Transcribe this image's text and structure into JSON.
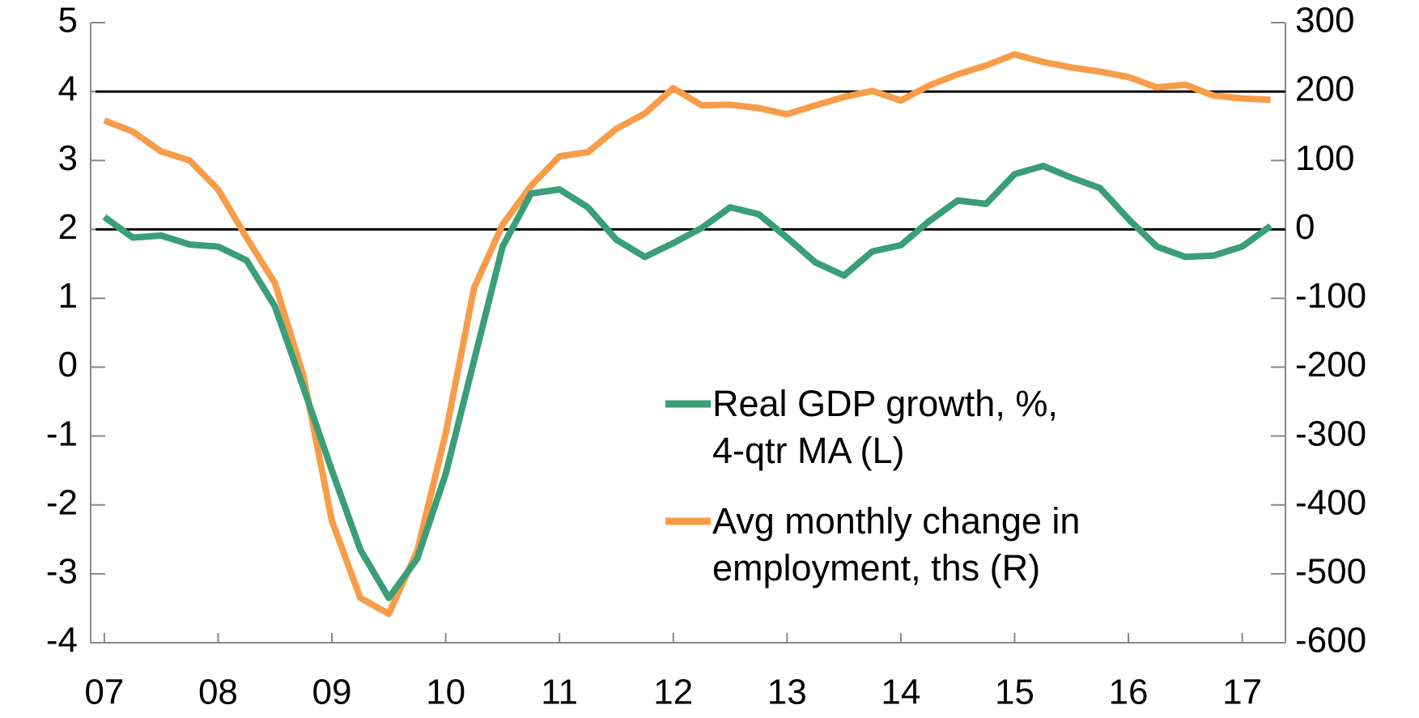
{
  "chart_data": {
    "type": "line",
    "x": [
      2007,
      2007.25,
      2007.5,
      2007.75,
      2008,
      2008.25,
      2008.5,
      2008.75,
      2009,
      2009.25,
      2009.5,
      2009.75,
      2010,
      2010.25,
      2010.5,
      2010.75,
      2011,
      2011.25,
      2011.5,
      2011.75,
      2012,
      2012.25,
      2012.5,
      2012.75,
      2013,
      2013.25,
      2013.5,
      2013.75,
      2014,
      2014.25,
      2014.5,
      2014.75,
      2015,
      2015.25,
      2015.5,
      2015.75,
      2016,
      2016.25,
      2016.5,
      2016.75,
      2017,
      2017.25
    ],
    "series": [
      {
        "name": "Real GDP growth, %,\n4-qtr MA (L)",
        "color": "#3a9e78",
        "values": [
          2.18,
          1.88,
          1.91,
          1.78,
          1.75,
          1.55,
          0.88,
          -0.3,
          -1.5,
          -2.65,
          -3.35,
          -2.78,
          -1.55,
          0.1,
          1.75,
          2.52,
          2.58,
          2.32,
          1.85,
          1.6,
          1.8,
          2.02,
          2.32,
          2.22,
          1.88,
          1.52,
          1.33,
          1.68,
          1.77,
          2.12,
          2.42,
          2.37,
          2.8,
          2.92,
          2.75,
          2.6,
          2.15,
          1.75,
          1.6,
          1.62,
          1.75,
          2.05
        ]
      },
      {
        "name": "Avg monthly change in\nemployment, ths (R)",
        "color": "#f79d4a",
        "axis": "y2",
        "values": [
          158,
          142,
          113,
          100,
          58,
          -12,
          -78,
          -213,
          -423,
          -535,
          -558,
          -467,
          -296,
          -85,
          7,
          63,
          106,
          112,
          146,
          168,
          205,
          180,
          181,
          176,
          167,
          180,
          192,
          201,
          187,
          209,
          225,
          238,
          254,
          243,
          235,
          229,
          221,
          206,
          210,
          194,
          190,
          188
        ]
      }
    ],
    "xlim": [
      2006.88,
      2017.38
    ],
    "xticks": [
      {
        "value": 2007,
        "label": "07"
      },
      {
        "value": 2008,
        "label": "08"
      },
      {
        "value": 2009,
        "label": "09"
      },
      {
        "value": 2010,
        "label": "10"
      },
      {
        "value": 2011,
        "label": "11"
      },
      {
        "value": 2012,
        "label": "12"
      },
      {
        "value": 2013,
        "label": "13"
      },
      {
        "value": 2014,
        "label": "14"
      },
      {
        "value": 2015,
        "label": "15"
      },
      {
        "value": 2016,
        "label": "16"
      },
      {
        "value": 2017,
        "label": "17"
      }
    ],
    "ylim": [
      -4,
      5
    ],
    "yticks": [
      -4,
      -3,
      -2,
      -1,
      0,
      1,
      2,
      3,
      4,
      5
    ],
    "y2lim": [
      -600,
      300
    ],
    "y2ticks": [
      -600,
      -500,
      -400,
      -300,
      -200,
      -100,
      0,
      100,
      200,
      300
    ],
    "hlines": [
      2,
      4
    ]
  }
}
